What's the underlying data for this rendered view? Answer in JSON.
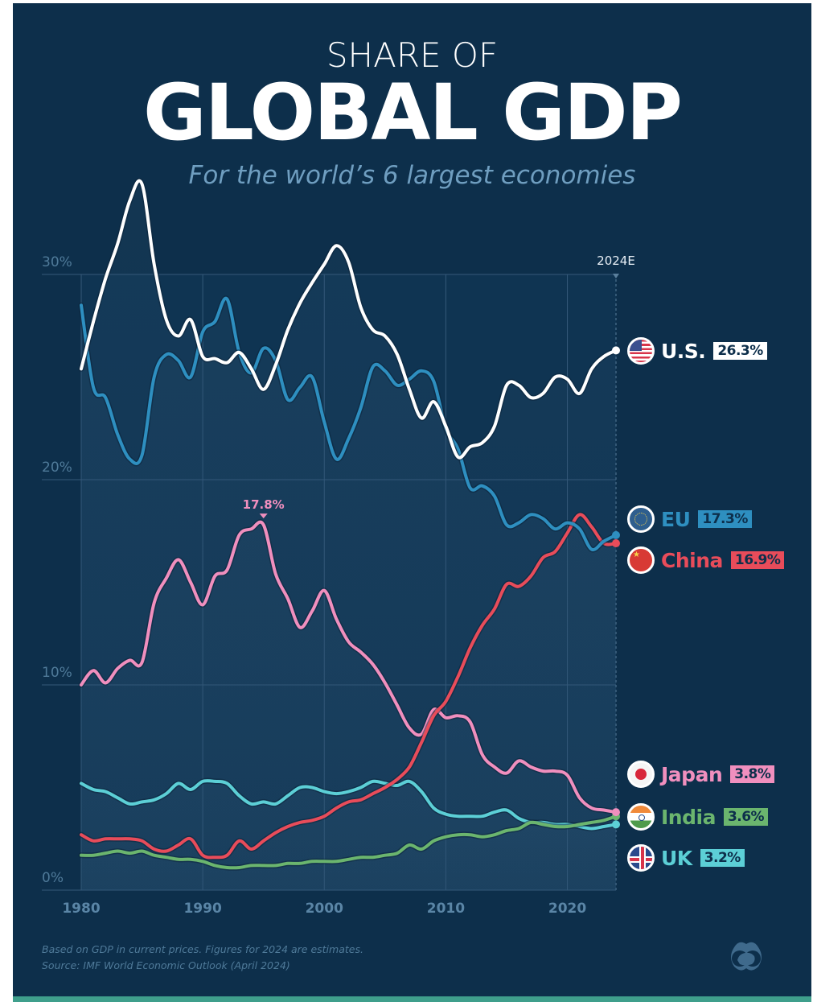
{
  "header": {
    "title_small": "SHARE OF",
    "title_big": "GLOBAL GDP",
    "subtitle": "For the world’s 6 largest economies"
  },
  "chart_data": {
    "type": "line",
    "title": "Share of Global GDP",
    "subtitle": "For the world’s 6 largest economies",
    "xlabel": "",
    "ylabel": "",
    "x": [
      1980,
      1981,
      1982,
      1983,
      1984,
      1985,
      1986,
      1987,
      1988,
      1989,
      1990,
      1991,
      1992,
      1993,
      1994,
      1995,
      1996,
      1997,
      1998,
      1999,
      2000,
      2001,
      2002,
      2003,
      2004,
      2005,
      2006,
      2007,
      2008,
      2009,
      2010,
      2011,
      2012,
      2013,
      2014,
      2015,
      2016,
      2017,
      2018,
      2019,
      2020,
      2021,
      2022,
      2023,
      2024
    ],
    "x_ticks": [
      "1980",
      "1990",
      "2000",
      "2010",
      "2020"
    ],
    "x_range": [
      1980,
      2024
    ],
    "y_ticks": [
      "0%",
      "10%",
      "20%",
      "30%"
    ],
    "y_range": [
      0,
      30
    ],
    "grid": true,
    "estimate_marker": {
      "year": 2024,
      "label": "2024E"
    },
    "annotation": {
      "series": "Japan",
      "year": 1995,
      "label": "17.8%"
    },
    "series": [
      {
        "name": "U.S.",
        "color": "#ffffff",
        "end_label": "26.3%",
        "values": [
          25.4,
          27.7,
          29.8,
          31.5,
          33.6,
          34.4,
          30.5,
          27.8,
          27.0,
          27.8,
          26.0,
          25.9,
          25.7,
          26.2,
          25.4,
          24.4,
          25.6,
          27.3,
          28.6,
          29.6,
          30.5,
          31.4,
          30.6,
          28.4,
          27.3,
          27.0,
          26.1,
          24.4,
          23.0,
          23.8,
          22.6,
          21.1,
          21.6,
          21.8,
          22.6,
          24.6,
          24.6,
          24.0,
          24.2,
          25.0,
          24.9,
          24.2,
          25.4,
          26.0,
          26.3
        ]
      },
      {
        "name": "EU",
        "color": "#2e8fc0",
        "end_label": "17.3%",
        "values": [
          28.5,
          24.5,
          24.0,
          22.2,
          21.0,
          21.2,
          25.0,
          26.1,
          25.8,
          25.0,
          27.2,
          27.7,
          28.8,
          26.2,
          25.2,
          26.4,
          25.8,
          23.9,
          24.5,
          25.0,
          22.8,
          21.0,
          22.0,
          23.5,
          25.5,
          25.3,
          24.6,
          24.9,
          25.3,
          24.8,
          22.5,
          21.5,
          19.6,
          19.7,
          19.2,
          17.8,
          17.9,
          18.3,
          18.1,
          17.6,
          17.9,
          17.6,
          16.6,
          17.0,
          17.3
        ]
      },
      {
        "name": "China",
        "color": "#e84c5a",
        "end_label": "16.9%",
        "values": [
          2.7,
          2.4,
          2.5,
          2.5,
          2.5,
          2.4,
          2.0,
          1.9,
          2.2,
          2.5,
          1.7,
          1.6,
          1.7,
          2.4,
          2.0,
          2.4,
          2.8,
          3.1,
          3.3,
          3.4,
          3.6,
          4.0,
          4.3,
          4.4,
          4.7,
          5.0,
          5.4,
          6.0,
          7.2,
          8.5,
          9.2,
          10.4,
          11.8,
          12.9,
          13.7,
          14.9,
          14.8,
          15.3,
          16.2,
          16.5,
          17.4,
          18.3,
          17.7,
          16.9,
          16.9
        ]
      },
      {
        "name": "Japan",
        "color": "#f08fbe",
        "end_label": "3.8%",
        "values": [
          10.0,
          10.7,
          10.1,
          10.8,
          11.2,
          11.1,
          14.0,
          15.2,
          16.1,
          15.0,
          13.9,
          15.3,
          15.6,
          17.3,
          17.6,
          17.8,
          15.4,
          14.2,
          12.8,
          13.6,
          14.6,
          13.2,
          12.1,
          11.6,
          11.0,
          10.1,
          9.0,
          7.9,
          7.6,
          8.8,
          8.4,
          8.5,
          8.2,
          6.6,
          6.0,
          5.7,
          6.3,
          6.0,
          5.8,
          5.8,
          5.6,
          4.5,
          4.0,
          3.9,
          3.8
        ]
      },
      {
        "name": "India",
        "color": "#6bb56e",
        "end_label": "3.6%",
        "values": [
          1.7,
          1.7,
          1.8,
          1.9,
          1.8,
          1.9,
          1.7,
          1.6,
          1.5,
          1.5,
          1.4,
          1.2,
          1.1,
          1.1,
          1.2,
          1.2,
          1.2,
          1.3,
          1.3,
          1.4,
          1.4,
          1.4,
          1.5,
          1.6,
          1.6,
          1.7,
          1.8,
          2.2,
          2.0,
          2.4,
          2.6,
          2.7,
          2.7,
          2.6,
          2.7,
          2.9,
          3.0,
          3.3,
          3.2,
          3.1,
          3.1,
          3.2,
          3.3,
          3.4,
          3.6
        ]
      },
      {
        "name": "UK",
        "color": "#5ccfd6",
        "end_label": "3.2%",
        "values": [
          5.2,
          4.9,
          4.8,
          4.5,
          4.2,
          4.3,
          4.4,
          4.7,
          5.2,
          4.9,
          5.3,
          5.3,
          5.2,
          4.6,
          4.2,
          4.3,
          4.2,
          4.6,
          5.0,
          5.0,
          4.8,
          4.7,
          4.8,
          5.0,
          5.3,
          5.2,
          5.1,
          5.3,
          4.8,
          4.0,
          3.7,
          3.6,
          3.6,
          3.6,
          3.8,
          3.9,
          3.5,
          3.3,
          3.3,
          3.2,
          3.2,
          3.1,
          3.0,
          3.1,
          3.2
        ]
      }
    ]
  },
  "legend": [
    {
      "name": "U.S.",
      "value": "26.3%",
      "flag": "us-flag-icon"
    },
    {
      "name": "EU",
      "value": "17.3%",
      "flag": "eu-flag-icon"
    },
    {
      "name": "China",
      "value": "16.9%",
      "flag": "china-flag-icon"
    },
    {
      "name": "Japan",
      "value": "3.8%",
      "flag": "japan-flag-icon"
    },
    {
      "name": "India",
      "value": "3.6%",
      "flag": "india-flag-icon"
    },
    {
      "name": "UK",
      "value": "3.2%",
      "flag": "uk-flag-icon"
    }
  ],
  "footer": {
    "note": "Based on GDP in current prices. Figures for 2024 are estimates.",
    "source": "Source: IMF World Economic Outlook (April 2024)",
    "logo": "visual-capitalist-logo-icon"
  }
}
